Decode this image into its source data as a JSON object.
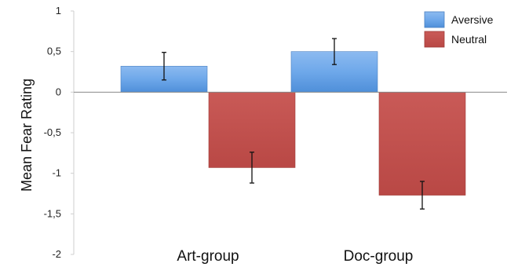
{
  "chart_data": {
    "type": "bar",
    "title": "",
    "xlabel": "",
    "ylabel": "Mean Fear Rating",
    "categories": [
      "Art-group",
      "Doc-group"
    ],
    "series": [
      {
        "name": "Aversive",
        "values": [
          0.32,
          0.5
        ],
        "errors": [
          0.17,
          0.16
        ]
      },
      {
        "name": "Neutral",
        "values": [
          -0.93,
          -1.27
        ],
        "errors": [
          0.19,
          0.17
        ]
      }
    ],
    "ylim": [
      -2,
      1
    ],
    "yticks": [
      {
        "value": 1,
        "label": "1"
      },
      {
        "value": 0.5,
        "label": "0,5"
      },
      {
        "value": 0,
        "label": "0"
      },
      {
        "value": -0.5,
        "label": "-0,5"
      },
      {
        "value": -1,
        "label": "-1"
      },
      {
        "value": -1.5,
        "label": "-1,5"
      },
      {
        "value": -2,
        "label": "-2"
      }
    ],
    "legend_position": "top-right",
    "grid": false,
    "colors": {
      "Aversive": "#5b9bd5",
      "Neutral": "#c0504d"
    }
  }
}
